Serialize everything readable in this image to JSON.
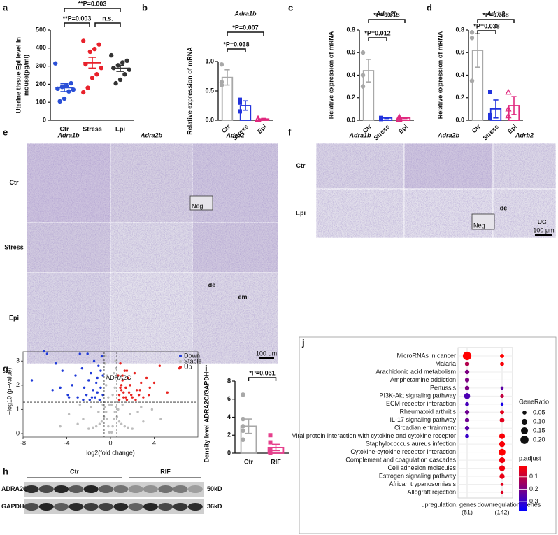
{
  "panel_labels": [
    "a",
    "b",
    "c",
    "d",
    "e",
    "f",
    "g",
    "h",
    "i",
    "j"
  ],
  "chart_data": [
    {
      "type": "dot",
      "ylabel": [
        "Uterine tissue Epi level in",
        "mouse(pg/ml)"
      ],
      "categories": [
        "Ctr",
        "Stress",
        "Epi"
      ],
      "colors": [
        "#2a4fd6",
        "#e8212b",
        "#333333"
      ],
      "values": [
        181,
        319,
        288
      ],
      "errors": [
        22,
        30,
        17
      ],
      "points": [
        [
          315,
          205,
          190,
          185,
          175,
          170,
          160,
          120,
          105
        ],
        [
          440,
          420,
          395,
          380,
          310,
          290,
          255,
          235,
          180,
          155
        ],
        [
          360,
          330,
          320,
          305,
          290,
          280,
          255,
          225,
          205
        ]
      ],
      "ylim": [
        0,
        500
      ],
      "yticks": [
        0,
        100,
        200,
        300,
        400,
        500
      ],
      "comparisons": [
        {
          "groups": [
            "Ctr",
            "Epi"
          ],
          "label": "**P=0.003"
        },
        {
          "groups": [
            "Ctr",
            "Stress"
          ],
          "label": "**P=0.003"
        },
        {
          "groups": [
            "Stress",
            "Epi"
          ],
          "label": "n.s."
        }
      ]
    },
    {
      "type": "bar",
      "title": "Adra1b",
      "ylabel": [
        "Relative expression of mRNA"
      ],
      "categories": [
        "Ctr",
        "Stress",
        "Epi"
      ],
      "colors": [
        "#a8a8a8",
        "#2233dd",
        "#e0287e"
      ],
      "values": [
        0.73,
        0.25,
        0.02
      ],
      "errors": [
        0.13,
        0.08,
        0.01
      ],
      "points": [
        [
          0.95,
          0.65,
          0.6
        ],
        [
          0.35,
          0.3,
          0.15
        ],
        [
          0.03,
          0.02,
          0.01
        ]
      ],
      "ylim": [
        0,
        1.0
      ],
      "yticks": [
        {
          "value": 0,
          "label": "0.0"
        },
        {
          "value": 0.5,
          "label": "0.5"
        },
        {
          "value": 1,
          "label": "1.0"
        }
      ],
      "comparisons": [
        {
          "groups": [
            "Ctr",
            "Epi"
          ],
          "label": "*P=0.007"
        },
        {
          "groups": [
            "Ctr",
            "Stress"
          ],
          "label": "*P=0.038"
        }
      ]
    },
    {
      "type": "bar",
      "title": "Adra2b",
      "ylabel": [
        "Relative expression of mRNA"
      ],
      "categories": [
        "Ctr",
        "Stress",
        "Epi"
      ],
      "colors": [
        "#a8a8a8",
        "#2233dd",
        "#e0287e"
      ],
      "values": [
        0.44,
        0.02,
        0.02
      ],
      "errors": [
        0.1,
        0.005,
        0.005
      ],
      "points": [
        [
          0.6,
          0.4,
          0.3
        ],
        [
          0.02,
          0.02,
          0.01
        ],
        [
          0.03,
          0.02,
          0.01
        ]
      ],
      "ylim": [
        0,
        0.8
      ],
      "yticks": [
        {
          "value": 0,
          "label": "0.0"
        },
        0.2,
        0.4,
        0.6,
        0.8
      ],
      "comparisons": [
        {
          "groups": [
            "Ctr",
            "Epi"
          ],
          "label": "*P=0.013"
        },
        {
          "groups": [
            "Ctr",
            "Stress"
          ],
          "label": "*P=0.012"
        }
      ]
    },
    {
      "type": "bar",
      "title": "Adrb2",
      "ylabel": [
        "Relative expression of mRNA"
      ],
      "categories": [
        "Ctr",
        "Stress",
        "Epi"
      ],
      "colors": [
        "#a8a8a8",
        "#2233dd",
        "#e0287e"
      ],
      "values": [
        0.62,
        0.1,
        0.13
      ],
      "errors": [
        0.15,
        0.08,
        0.08
      ],
      "points": [
        [
          0.78,
          0.73,
          0.35
        ],
        [
          0.25,
          0.05,
          0.02
        ],
        [
          0.25,
          0.1,
          0.04
        ]
      ],
      "ylim": [
        0,
        0.8
      ],
      "yticks": [
        {
          "value": 0,
          "label": "0.0"
        },
        0.2,
        0.4,
        0.6,
        0.8
      ],
      "comparisons": [
        {
          "groups": [
            "Ctr",
            "Epi"
          ],
          "label": "*P=0.038"
        },
        {
          "groups": [
            "Ctr",
            "Stress"
          ],
          "label": "*P=0.038"
        }
      ]
    },
    {
      "type": "scatter",
      "xlabel": "log2(fold change)",
      "ylabel": "−log10 (p−value)",
      "xlim": [
        -8,
        8
      ],
      "xticks": [
        -8,
        -4,
        0,
        4
      ],
      "ylim": [
        0,
        3.5
      ],
      "yticks": [
        0,
        1,
        2,
        3
      ],
      "vlines": [
        -0.58,
        0.58
      ],
      "hline": 1.3,
      "annotation": "ADRA2C",
      "series": [
        {
          "name": "Down",
          "color": "#1f3ad8",
          "x": [
            -7.2,
            -6.1,
            -5.8,
            -5.0,
            -4.6,
            -4.4,
            -3.9,
            -3.5,
            -3.2,
            -3.0,
            -2.8,
            -2.6,
            -2.4,
            -2.2,
            -2.0,
            -1.9,
            -1.8,
            -1.6,
            -1.5,
            -1.4,
            -1.3,
            -1.2,
            -1.1,
            -1.0,
            -0.9,
            -0.8,
            -0.7,
            -0.7,
            -2.5,
            -3.8,
            -1.7,
            -1.2,
            -0.9,
            -5.3,
            -2.1
          ],
          "values": [
            2.2,
            3.4,
            3.3,
            2.9,
            1.9,
            2.6,
            1.6,
            2.0,
            2.4,
            1.5,
            3.3,
            2.7,
            1.9,
            1.6,
            2.2,
            1.4,
            2.5,
            1.8,
            3.0,
            1.5,
            2.1,
            1.7,
            2.8,
            1.4,
            1.9,
            3.2,
            1.6,
            2.4,
            1.4,
            1.5,
            1.5,
            2.3,
            2.6,
            1.8,
            3.3
          ]
        },
        {
          "name": "Stable",
          "color": "#bdbdbd",
          "x": [
            -0.1,
            0.1,
            -0.2,
            0.2,
            -0.3,
            0.3,
            -0.4,
            0.4,
            -0.5,
            0.5,
            -0.6,
            0.6,
            -0.8,
            0.8,
            -1.0,
            1.0,
            -1.3,
            1.3,
            -1.6,
            1.6,
            -2.0,
            2.0,
            -2.5,
            2.5,
            -3.0,
            3.0,
            -3.8,
            3.8,
            -4.6,
            4.6,
            -0.2,
            0.2,
            -0.4,
            0.4,
            -0.3,
            0.3,
            -0.5,
            0.5,
            -0.1,
            0.1,
            -0.7,
            0.7,
            -1.1,
            1.1,
            -1.8,
            1.8,
            -2.8,
            2.8,
            -0.45,
            0.45
          ],
          "values": [
            0.05,
            0.05,
            0.3,
            0.3,
            0.6,
            0.6,
            0.9,
            0.9,
            1.1,
            1.1,
            0.7,
            0.7,
            0.5,
            0.5,
            0.4,
            0.4,
            0.3,
            0.3,
            0.25,
            0.25,
            0.2,
            0.2,
            0.6,
            0.9,
            0.4,
            0.5,
            0.8,
            1.0,
            0.3,
            0.6,
            1.5,
            1.6,
            2.0,
            1.9,
            2.4,
            2.5,
            2.9,
            2.7,
            1.2,
            1.2,
            1.2,
            1.0,
            0.9,
            1.2,
            1.1,
            0.8,
            1.2,
            1.1,
            3.2,
            3.0
          ]
        },
        {
          "name": "Up",
          "color": "#e8231f",
          "x": [
            0.7,
            0.8,
            0.9,
            1.0,
            1.1,
            1.2,
            1.3,
            1.4,
            1.5,
            1.6,
            1.7,
            1.8,
            2.0,
            2.2,
            2.4,
            2.6,
            2.8,
            3.0,
            3.3,
            3.6,
            4.0,
            4.5,
            5.2,
            6.3,
            0.8,
            1.0,
            1.2,
            1.5,
            1.9,
            2.3,
            0.9,
            1.1,
            1.4,
            2.7,
            3.5
          ],
          "values": [
            2.4,
            1.6,
            2.9,
            1.8,
            2.2,
            1.5,
            2.6,
            1.9,
            1.4,
            2.3,
            1.7,
            2.0,
            1.5,
            2.5,
            1.8,
            1.6,
            2.1,
            1.5,
            2.3,
            1.9,
            2.1,
            2.8,
            1.7,
            2.7,
            1.4,
            2.0,
            1.7,
            2.6,
            1.6,
            1.4,
            1.9,
            2.4,
            1.5,
            1.8,
            1.6
          ]
        }
      ]
    },
    {
      "type": "bar",
      "ylabel": [
        "Density level ADRA2C/GAPDH"
      ],
      "categories": [
        "Ctr",
        "RIF"
      ],
      "colors": [
        "#a8a8a8",
        "#e63f8c"
      ],
      "values": [
        3.0,
        0.63
      ],
      "errors": [
        0.8,
        0.35
      ],
      "points": [
        [
          6.5,
          3.8,
          3.0,
          2.5,
          1.5,
          1.5
        ],
        [
          2.0,
          1.2,
          0.4,
          0.1,
          0.1,
          0.0
        ]
      ],
      "ylim": [
        0,
        8
      ],
      "yticks": [
        0,
        2,
        4,
        6,
        8
      ],
      "comparisons": [
        {
          "groups": [
            "Ctr",
            "RIF"
          ],
          "label": "*P=0.031"
        }
      ]
    },
    {
      "type": "bubble",
      "categories": [
        "MicroRNAs in cancer",
        "Malaria",
        "Arachidonic acid metabolism",
        "Amphetamine addiction",
        "Pertussis",
        "PI3K-Akt signaling pathway",
        "ECM-receptor interaction",
        "Rheumatoid arthritis",
        "IL-17 signaling pathway",
        "Circadian entrainment",
        "Viral protein interaction with cytokine and cytokine receptor",
        "Staphylococcus aureus infection",
        "Cytokine-cytokine receptor interaction",
        "Complement and coagulation cascades",
        "Cell adhesion molecules",
        "Estrogen signaling pathway",
        "African trypanosomiasis",
        "Allograft rejection"
      ],
      "highlight": "PI3K-Akt signaling pathway",
      "highlight_color": "#e8231f",
      "series": [
        {
          "name": "upregulation. genes",
          "count": "(81)",
          "gene_ratio": [
            0.22,
            0.06,
            0.06,
            0.06,
            0.06,
            0.11,
            0.05,
            0.06,
            0.06,
            0.06,
            0.05,
            null,
            null,
            null,
            null,
            null,
            null,
            null
          ],
          "p_adjust": [
            0.01,
            0.12,
            0.2,
            0.2,
            0.2,
            0.27,
            0.28,
            0.22,
            0.22,
            0.25,
            0.3,
            null,
            null,
            null,
            null,
            null,
            null,
            null
          ]
        },
        {
          "name": "downregulation. genes",
          "count": "(142)",
          "gene_ratio": [
            0.05,
            0.05,
            null,
            null,
            0.03,
            0.04,
            0.03,
            0.05,
            0.07,
            null,
            0.1,
            0.1,
            0.14,
            0.1,
            0.1,
            0.08,
            0.03,
            0.03
          ],
          "p_adjust": [
            0.01,
            0.02,
            null,
            null,
            0.25,
            0.1,
            0.35,
            0.05,
            0.05,
            null,
            0.02,
            0.02,
            0.01,
            0.03,
            0.03,
            0.04,
            0.05,
            0.06
          ]
        }
      ],
      "size_legend": {
        "title": "GeneRatio",
        "values": [
          0.05,
          {
            "value": 0.1,
            "label": "0.10"
          },
          0.15,
          {
            "value": 0.2,
            "label": "0.20"
          }
        ]
      },
      "color_legend": {
        "title": "p.adjust",
        "lim": [
          0.01,
          0.38
        ],
        "ticks": [
          0.1,
          0.2,
          0.3
        ],
        "colors": [
          "#ff0000",
          "#0000ff"
        ]
      }
    }
  ],
  "micrographs": [
    {
      "columns": [
        "Adra1b",
        "Adra2b",
        "Adrb2"
      ],
      "rows": [
        "Ctr",
        "Stress",
        "Epi"
      ],
      "annotations": [
        "Neg",
        "de",
        "em"
      ],
      "scale_bar": "100 μm"
    },
    {
      "columns": [
        "Adra1b",
        "Adra2b",
        "Adrb2"
      ],
      "rows": [
        "Ctr",
        "Epi"
      ],
      "annotations": [
        "Neg",
        "de",
        "UC"
      ],
      "scale_bar": "100 μm"
    }
  ],
  "blot": {
    "groups": [
      "Ctr",
      "RIF"
    ],
    "rows": [
      "ADRA2C",
      "GAPDH"
    ],
    "sizes": [
      "50kD",
      "36kD"
    ]
  }
}
